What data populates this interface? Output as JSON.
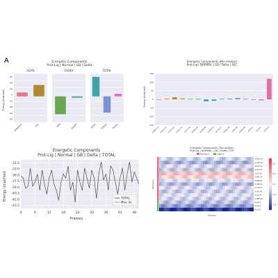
{
  "figure_letter": "A",
  "chart_data": [
    {
      "type": "bar",
      "title": "Energetic Components",
      "subtitle": "Prot-Lig | Normal | GB | Delta",
      "ylabel": "Energy (kcal/mol)",
      "yticks": [
        "-80",
        "-60",
        "-40",
        "-20",
        "0",
        "20",
        "40",
        "60"
      ],
      "ylim": [
        -80,
        70
      ],
      "facets": [
        {
          "title": "GGAS",
          "categories": [
            "VDWAALS",
            "EEL"
          ],
          "values": [
            12,
            35
          ],
          "colors": [
            "#e8738a",
            "#b08a2e"
          ]
        },
        {
          "title": "GSOLV",
          "categories": [
            "EGB",
            "ESURF"
          ],
          "values": [
            -55,
            -4
          ],
          "colors": [
            "#6aa84f",
            "#3aa68c"
          ]
        },
        {
          "title": "TOTAL",
          "categories": [
            "GGAS",
            "GSOLV",
            "TOTAL"
          ],
          "values": [
            60,
            -50,
            8
          ],
          "colors": [
            "#3aa6a8",
            "#7b93d6",
            "#e070c8"
          ]
        }
      ]
    },
    {
      "type": "bar",
      "title": "Energetic Components (Per-residue)",
      "subtitle": "Prot-Lig | NORMAL | GB | Delta | SEC",
      "ylabel": "Energy (kcal/mol)",
      "yticks": [
        "-150",
        "-100",
        "-50",
        "0",
        "50",
        "100",
        "150"
      ],
      "ylim": [
        -150,
        150
      ],
      "categories": [
        "A:ARG:14",
        "A:ASP:18",
        "A:GLU:21",
        "A:LEU:25",
        "A:LYS:26",
        "A:PHE:29",
        "A:SER:30",
        "A:THR:33",
        "A:TYR:37",
        "A:VAL:40",
        "A:ILE:44",
        "A:MET:48",
        "B:LIG:1",
        "B:LIG:2",
        "B:LIG:3"
      ],
      "values": [
        -3,
        4,
        12,
        5,
        3,
        3,
        -11,
        -8,
        3,
        4,
        8,
        3,
        -1,
        -6,
        120
      ],
      "colors": [
        "#e8738a",
        "#e07a3a",
        "#b08a2e",
        "#8fa12e",
        "#5aa844",
        "#3aa66a",
        "#3aa68c",
        "#3aa6a8",
        "#3a9ec0",
        "#4a8fd6",
        "#7b93d6",
        "#a07ad6",
        "#c070d0",
        "#d870b8",
        "#e070a0"
      ]
    },
    {
      "type": "line",
      "title": "Energetic Components",
      "subtitle": "Prot-Lig | Normal | GB | Delta | TOTAL",
      "xlabel": "Frames",
      "ylabel": "Energy (kcal/mol)",
      "xticks": [
        "0",
        "6",
        "12",
        "18",
        "24",
        "30",
        "36",
        "42",
        "48"
      ],
      "yticks": [
        "-31.5",
        "-33.0",
        "-36.0",
        "-37.5",
        "-39.0",
        "-40.5",
        "-42.0",
        "-43.5"
      ],
      "xlim": [
        0,
        50
      ],
      "ylim": [
        -43.5,
        -31.5
      ],
      "series": [
        {
          "name": "TOTAL",
          "x": [
            0,
            1,
            2,
            3,
            4,
            5,
            6,
            7,
            8,
            9,
            10,
            11,
            12,
            13,
            14,
            15,
            16,
            17,
            18,
            19,
            20,
            21,
            22,
            23,
            24,
            25,
            26,
            27,
            28,
            29,
            30,
            31,
            32,
            33,
            34,
            35,
            36,
            37,
            38,
            39,
            40,
            41,
            42,
            43,
            44,
            45,
            46,
            47,
            48,
            49,
            50
          ],
          "y": [
            -35.5,
            -36,
            -38.5,
            -38,
            -33.5,
            -38,
            -37,
            -35,
            -39,
            -34,
            -37.5,
            -40,
            -36,
            -34,
            -37.5,
            -39,
            -41.5,
            -37,
            -35,
            -36,
            -33,
            -39,
            -37,
            -42,
            -34,
            -37,
            -39,
            -33.5,
            -36,
            -38.5,
            -34,
            -36,
            -41,
            -35,
            -32,
            -36.5,
            -35,
            -39,
            -33,
            -34,
            -37,
            -40,
            -36,
            -33.5,
            -39,
            -35,
            -32,
            -37,
            -34.5,
            -36,
            -37.5
          ],
          "color": "#4a4a4a"
        },
        {
          "name": "Mov. Av.",
          "x": [
            0,
            50
          ],
          "y": [
            -36.5,
            -36.5
          ],
          "color": "#9a9a9a"
        }
      ],
      "legend": "bottom-right"
    },
    {
      "type": "heatmap",
      "title": "Energetic Components (Per-residue)",
      "subtitle": "Prot-Lig | NORMAL | GB | Delta | TOC",
      "xlabel": "Frames",
      "ylabel": "Residues",
      "legend_entries": [
        "Receptor",
        "Ligand"
      ],
      "legend_colors": [
        "#e06a8a",
        "#6ab86a"
      ],
      "rows": 15,
      "cols": 50,
      "row_values": [
        -0.4,
        -0.8,
        -0.3,
        -0.5,
        0.6,
        0.4,
        -0.2,
        -0.7,
        -0.3,
        -0.5,
        -0.2,
        -0.4,
        -0.6,
        -1.0,
        -2.2
      ],
      "row_labels": [
        "A:ARG:14",
        "A:ASP:18",
        "A:GLU:21",
        "A:LEU:25",
        "A:LYS:26",
        "A:PHE:29",
        "A:SER:30",
        "A:THR:33",
        "A:TYR:37",
        "A:VAL:40",
        "A:ILE:44",
        "A:MET:48",
        "B:LIG:1",
        "B:LIG:2",
        "B:LIG:3"
      ],
      "row_groups": [
        "R",
        "R",
        "R",
        "R",
        "R",
        "R",
        "R",
        "R",
        "R",
        "R",
        "R",
        "R",
        "L",
        "L",
        "L"
      ],
      "colorbar_ticks": [
        "2.0",
        "1.0",
        "0.0",
        "-1.0",
        "-2.0"
      ]
    }
  ]
}
